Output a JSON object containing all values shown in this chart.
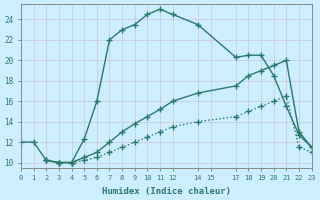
{
  "xlabel": "Humidex (Indice chaleur)",
  "bg_color": "#cceeff",
  "grid_color": "#aaddcc",
  "line_color": "#2a7a6a",
  "xlim": [
    0,
    23
  ],
  "ylim": [
    9.5,
    25.5
  ],
  "xticks": [
    0,
    1,
    2,
    3,
    4,
    5,
    6,
    7,
    8,
    9,
    10,
    11,
    12,
    14,
    15,
    17,
    18,
    19,
    20,
    21,
    22,
    23
  ],
  "yticks": [
    10,
    12,
    14,
    16,
    18,
    20,
    22,
    24
  ],
  "series1": {
    "x": [
      0,
      1,
      2,
      3,
      4,
      5,
      6,
      7,
      8,
      9,
      10,
      11,
      12,
      14,
      17,
      18,
      19,
      20,
      21,
      22,
      23
    ],
    "y": [
      12,
      12,
      10.2,
      10,
      10,
      12.3,
      16,
      22,
      23,
      23.5,
      24.5,
      25,
      24.5,
      23.5,
      20.3,
      20.5,
      20.5,
      18.5,
      15.5,
      12.7,
      11.5
    ]
  },
  "series2": {
    "x": [
      2,
      3,
      4,
      5,
      6,
      7,
      8,
      9,
      10,
      11,
      12,
      14,
      17,
      18,
      19,
      20,
      21,
      22,
      23
    ],
    "y": [
      10.2,
      10,
      10,
      10.5,
      11,
      12,
      13,
      13.8,
      14.5,
      15.2,
      16,
      16.8,
      17.5,
      18.5,
      19,
      19.5,
      20,
      13,
      11.5
    ]
  },
  "series3": {
    "x": [
      2,
      3,
      4,
      5,
      6,
      7,
      8,
      9,
      10,
      11,
      12,
      14,
      17,
      18,
      19,
      20,
      21,
      22,
      23
    ],
    "y": [
      10.2,
      10,
      10,
      10.2,
      10.5,
      11,
      11.5,
      12,
      12.5,
      13,
      13.5,
      14,
      14.5,
      15,
      15.5,
      16,
      16.5,
      11.5,
      11
    ]
  }
}
